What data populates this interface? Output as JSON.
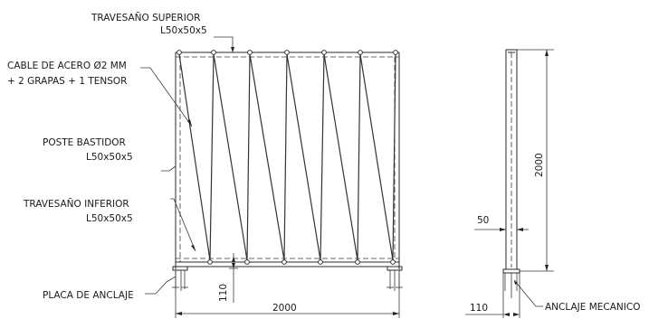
{
  "labels": {
    "travesano_superior": "TRAVESAÑO SUPERIOR",
    "travesano_superior_profile": "L50x50x5",
    "cable_line1": "CABLE DE ACERO Ø2 MM",
    "cable_line2": "+ 2 GRAPAS + 1 TENSOR",
    "poste_bastidor": "POSTE BASTIDOR",
    "poste_bastidor_profile": "L50x50x5",
    "travesano_inferior": "TRAVESAÑO INFERIOR",
    "travesano_inferior_profile": "L50x50x5",
    "placa_anclaje": "PLACA DE ANCLAJE",
    "anclaje_mecanico": "ANCLAJE MECANICO"
  },
  "dimensions": {
    "front_width": "2000",
    "front_base_offset": "110",
    "side_height": "2000",
    "side_width": "50",
    "side_base_offset": "110"
  },
  "colors": {
    "line": "#2a2a2a",
    "text": "#1a1a1a"
  }
}
